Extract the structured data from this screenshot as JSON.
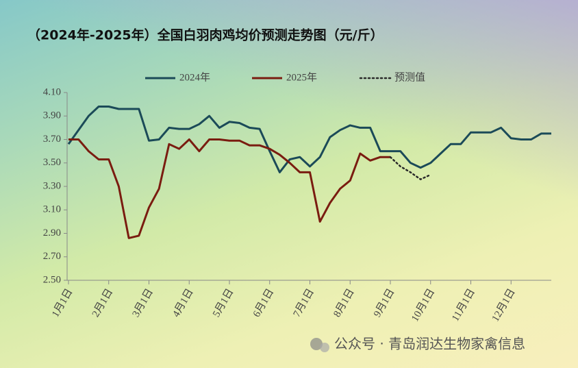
{
  "chart_data": {
    "type": "line",
    "title": "（2024年-2025年）全国白羽肉鸡均价预测走势图（元/斤）",
    "watermark": "公众号 · 青岛润达生物家禽信息",
    "legend": "top",
    "grid": false,
    "categories": [
      "1月1日",
      null,
      null,
      null,
      "2月1日",
      null,
      null,
      null,
      "3月1日",
      null,
      null,
      null,
      "4月1日",
      null,
      null,
      null,
      "5月1日",
      null,
      null,
      null,
      "6月1日",
      null,
      null,
      null,
      "7月1日",
      null,
      null,
      null,
      "8月1日",
      null,
      null,
      null,
      "9月1日",
      null,
      null,
      null,
      "10月1日",
      null,
      null,
      null,
      "11月1日",
      null,
      null,
      null,
      "12月1日",
      null,
      null,
      null,
      null
    ],
    "ylim": [
      2.5,
      4.1
    ],
    "yticks": [
      {
        "value": 2.5,
        "label": "2.50"
      },
      {
        "value": 2.7,
        "label": "2.70"
      },
      {
        "value": 2.9,
        "label": "2.90"
      },
      {
        "value": 3.1,
        "label": "3.10"
      },
      {
        "value": 3.3,
        "label": "3.30"
      },
      {
        "value": 3.5,
        "label": "3.50"
      },
      {
        "value": 3.7,
        "label": "3.70"
      },
      {
        "value": 3.9,
        "label": "3.90"
      },
      {
        "value": 4.1,
        "label": "4.10"
      }
    ],
    "series": [
      {
        "name": "2024年",
        "color": "#1b4a58",
        "style": "solid",
        "values": [
          3.66,
          3.78,
          3.9,
          3.98,
          3.98,
          3.96,
          3.96,
          3.96,
          3.69,
          3.7,
          3.8,
          3.79,
          3.79,
          3.83,
          3.9,
          3.8,
          3.85,
          3.84,
          3.8,
          3.79,
          3.6,
          3.42,
          3.53,
          3.55,
          3.47,
          3.55,
          3.72,
          3.78,
          3.82,
          3.8,
          3.8,
          3.6,
          3.6,
          3.6,
          3.5,
          3.46,
          3.5,
          3.58,
          3.66,
          3.66,
          3.76,
          3.76,
          3.76,
          3.8,
          3.71,
          3.7,
          3.7,
          3.75,
          3.75
        ]
      },
      {
        "name": "2025年",
        "color": "#7a1c10",
        "style": "solid",
        "values": [
          3.7,
          3.7,
          3.6,
          3.53,
          3.53,
          3.3,
          2.86,
          2.88,
          3.12,
          3.28,
          3.66,
          3.62,
          3.7,
          3.6,
          3.7,
          3.7,
          3.69,
          3.69,
          3.65,
          3.65,
          3.62,
          3.57,
          3.5,
          3.42,
          3.42,
          3.0,
          3.16,
          3.28,
          3.35,
          3.58,
          3.52,
          3.55,
          3.55,
          null,
          null,
          null,
          null,
          null,
          null,
          null,
          null,
          null,
          null,
          null,
          null,
          null,
          null,
          null,
          null
        ]
      },
      {
        "name": "预测值",
        "color": "#2a2a2a",
        "style": "dotted",
        "values": [
          null,
          null,
          null,
          null,
          null,
          null,
          null,
          null,
          null,
          null,
          null,
          null,
          null,
          null,
          null,
          null,
          null,
          null,
          null,
          null,
          null,
          null,
          null,
          null,
          null,
          null,
          null,
          null,
          null,
          null,
          null,
          null,
          3.55,
          3.47,
          3.42,
          3.36,
          3.4,
          null,
          null,
          null,
          null,
          null,
          null,
          null,
          null,
          null,
          null,
          null,
          null
        ]
      }
    ]
  }
}
